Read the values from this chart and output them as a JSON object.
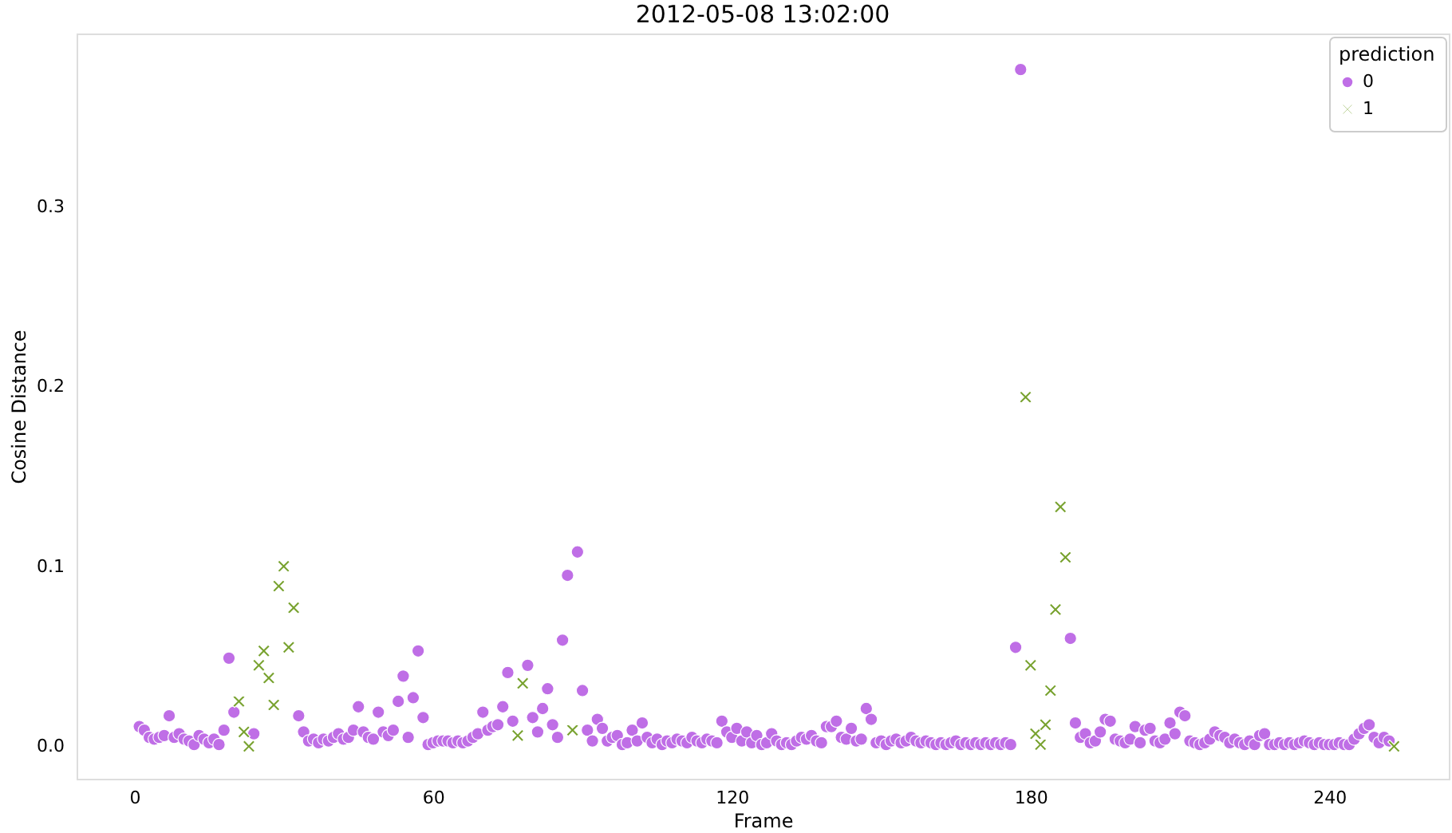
{
  "chart_data": {
    "type": "scatter",
    "title": "2012-05-08 13:02:00",
    "xlabel": "Frame",
    "ylabel": "Cosine Distance",
    "legend_title": "prediction",
    "legend": "top right",
    "grid": false,
    "xlim": [
      -11.6,
      264
    ],
    "ylim": [
      -0.018,
      0.396
    ],
    "xticks": [
      0,
      60,
      120,
      180,
      240
    ],
    "yticks": [
      {
        "value": 0,
        "label": "0.0"
      },
      0.1,
      0.2,
      0.3
    ],
    "series": [
      {
        "name": "0",
        "color": "#bf6ee6",
        "marker": "circle",
        "x": [
          1,
          2,
          3,
          4,
          5,
          6,
          7,
          8,
          9,
          10,
          11,
          12,
          13,
          14,
          15,
          16,
          17,
          18,
          19,
          20,
          24,
          33,
          34,
          35,
          36,
          37,
          38,
          39,
          40,
          41,
          42,
          43,
          44,
          45,
          46,
          47,
          48,
          49,
          50,
          51,
          52,
          53,
          54,
          55,
          56,
          57,
          58,
          59,
          60,
          61,
          62,
          63,
          64,
          65,
          66,
          67,
          68,
          69,
          70,
          71,
          72,
          73,
          74,
          75,
          76,
          79,
          80,
          81,
          82,
          83,
          84,
          85,
          86,
          87,
          89,
          90,
          91,
          92,
          93,
          94,
          95,
          96,
          97,
          98,
          99,
          100,
          101,
          102,
          103,
          104,
          105,
          106,
          107,
          108,
          109,
          110,
          111,
          112,
          113,
          114,
          115,
          116,
          117,
          118,
          119,
          120,
          121,
          122,
          123,
          124,
          125,
          126,
          127,
          128,
          129,
          130,
          131,
          132,
          133,
          134,
          135,
          136,
          137,
          138,
          139,
          140,
          141,
          142,
          143,
          144,
          145,
          146,
          147,
          148,
          149,
          150,
          151,
          152,
          153,
          154,
          155,
          156,
          157,
          158,
          159,
          160,
          161,
          162,
          163,
          164,
          165,
          166,
          167,
          168,
          169,
          170,
          171,
          172,
          173,
          174,
          175,
          176,
          177,
          178,
          188,
          189,
          190,
          191,
          192,
          193,
          194,
          195,
          196,
          197,
          198,
          199,
          200,
          201,
          202,
          203,
          204,
          205,
          206,
          207,
          208,
          209,
          210,
          211,
          212,
          213,
          214,
          215,
          216,
          217,
          218,
          219,
          220,
          221,
          222,
          223,
          224,
          225,
          226,
          227,
          228,
          229,
          230,
          231,
          232,
          233,
          234,
          235,
          236,
          237,
          238,
          239,
          240,
          241,
          242,
          243,
          244,
          245,
          246,
          247,
          248,
          249,
          250,
          251,
          252
        ],
        "values": [
          0.011,
          0.009,
          0.005,
          0.004,
          0.005,
          0.006,
          0.017,
          0.005,
          0.007,
          0.004,
          0.003,
          0.001,
          0.006,
          0.004,
          0.002,
          0.004,
          0.001,
          0.009,
          0.049,
          0.019,
          0.007,
          0.017,
          0.008,
          0.003,
          0.004,
          0.002,
          0.004,
          0.003,
          0.005,
          0.007,
          0.004,
          0.005,
          0.009,
          0.022,
          0.008,
          0.005,
          0.004,
          0.019,
          0.008,
          0.006,
          0.009,
          0.025,
          0.039,
          0.005,
          0.027,
          0.053,
          0.016,
          0.001,
          0.002,
          0.003,
          0.003,
          0.003,
          0.002,
          0.003,
          0.002,
          0.003,
          0.005,
          0.007,
          0.019,
          0.009,
          0.011,
          0.012,
          0.022,
          0.041,
          0.014,
          0.045,
          0.016,
          0.008,
          0.021,
          0.032,
          0.012,
          0.005,
          0.059,
          0.095,
          0.108,
          0.031,
          0.009,
          0.003,
          0.015,
          0.01,
          0.003,
          0.005,
          0.006,
          0.001,
          0.002,
          0.009,
          0.003,
          0.013,
          0.005,
          0.002,
          0.004,
          0.001,
          0.003,
          0.002,
          0.004,
          0.003,
          0.002,
          0.005,
          0.003,
          0.002,
          0.004,
          0.003,
          0.002,
          0.014,
          0.008,
          0.005,
          0.01,
          0.003,
          0.008,
          0.002,
          0.006,
          0.001,
          0.002,
          0.007,
          0.003,
          0.001,
          0.002,
          0.001,
          0.003,
          0.005,
          0.004,
          0.006,
          0.003,
          0.002,
          0.011,
          0.011,
          0.014,
          0.005,
          0.004,
          0.01,
          0.003,
          0.004,
          0.021,
          0.015,
          0.002,
          0.003,
          0.001,
          0.003,
          0.004,
          0.002,
          0.003,
          0.005,
          0.003,
          0.002,
          0.003,
          0.002,
          0.001,
          0.002,
          0.001,
          0.002,
          0.003,
          0.001,
          0.002,
          0.001,
          0.002,
          0.001,
          0.002,
          0.001,
          0.002,
          0.001,
          0.002,
          0.001,
          0.055,
          0.376,
          0.06,
          0.013,
          0.005,
          0.007,
          0.002,
          0.003,
          0.008,
          0.015,
          0.014,
          0.004,
          0.003,
          0.002,
          0.004,
          0.011,
          0.002,
          0.009,
          0.01,
          0.003,
          0.002,
          0.004,
          0.013,
          0.007,
          0.019,
          0.017,
          0.003,
          0.002,
          0.001,
          0.002,
          0.004,
          0.008,
          0.006,
          0.005,
          0.002,
          0.004,
          0.002,
          0.001,
          0.003,
          0.001,
          0.006,
          0.007,
          0.001,
          0.001,
          0.002,
          0.001,
          0.002,
          0.001,
          0.002,
          0.003,
          0.002,
          0.001,
          0.002,
          0.001,
          0.001,
          0.001,
          0.002,
          0.001,
          0.001,
          0.004,
          0.007,
          0.01,
          0.012,
          0.005,
          0.002,
          0.005,
          0.003
        ]
      },
      {
        "name": "1",
        "color": "#78a22f",
        "marker": "cross",
        "x": [
          21,
          22,
          23,
          25,
          26,
          27,
          28,
          29,
          30,
          31,
          32,
          77,
          78,
          88,
          179,
          180,
          181,
          182,
          183,
          184,
          185,
          186,
          187,
          253
        ],
        "values": [
          0.025,
          0.008,
          0,
          0.045,
          0.053,
          0.038,
          0.023,
          0.089,
          0.1,
          0.055,
          0.077,
          0.006,
          0.035,
          0.009,
          0.194,
          0.045,
          0.007,
          0.001,
          0.012,
          0.031,
          0.076,
          0.133,
          0.105,
          0
        ]
      }
    ]
  }
}
